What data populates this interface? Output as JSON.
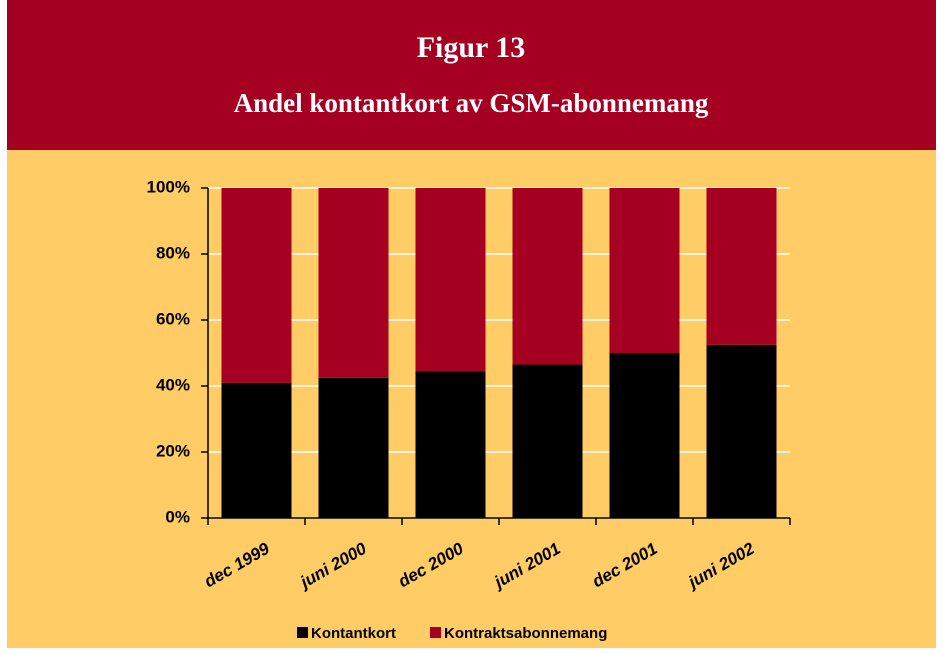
{
  "chart_data": {
    "type": "stacked_bar",
    "title": "Figur 13",
    "subtitle": "Andel kontantkort av GSM-abonnemang",
    "categories": [
      "dec 1999",
      "juni 2000",
      "dec 2000",
      "juni 2001",
      "dec 2001",
      "juni 2002"
    ],
    "series": [
      {
        "name": "Kontantkort",
        "color": "#000000",
        "values": [
          41,
          42.5,
          44.5,
          46.5,
          50,
          52.5
        ]
      },
      {
        "name": "Kontraktsabonnemang",
        "color": "#A50021",
        "values": [
          59,
          57.5,
          55.5,
          53.5,
          50,
          47.5
        ]
      }
    ],
    "ylim": [
      0,
      100
    ],
    "yticks": [
      {
        "value": 0,
        "label": "0%"
      },
      {
        "value": 20,
        "label": "20%"
      },
      {
        "value": 40,
        "label": "40%"
      },
      {
        "value": 60,
        "label": "60%"
      },
      {
        "value": 80,
        "label": "80%"
      },
      {
        "value": 100,
        "label": "100%"
      }
    ],
    "grid": true,
    "legend": "bottom"
  }
}
